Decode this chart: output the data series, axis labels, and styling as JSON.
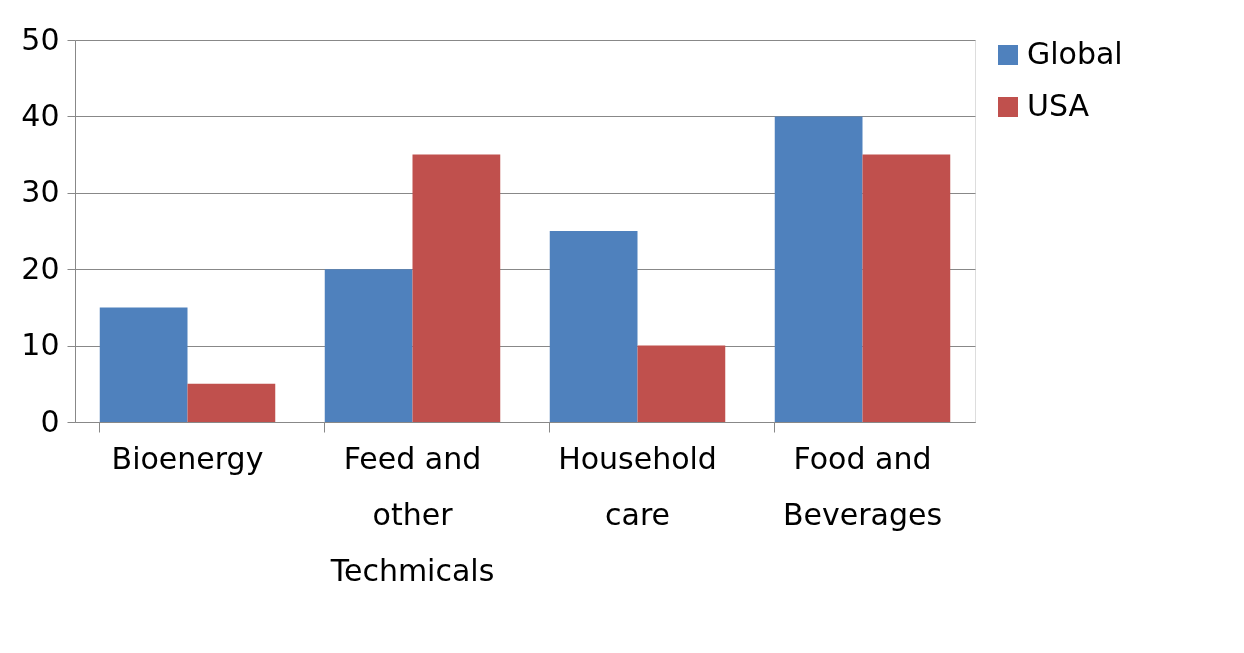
{
  "chart_data": {
    "type": "bar",
    "categories": [
      "Bioenergy",
      "Feed and other Techmicals",
      "Household care",
      "Food and Beverages"
    ],
    "series": [
      {
        "name": "Global",
        "color": "#4f81bd",
        "values": [
          15,
          20,
          25,
          40
        ]
      },
      {
        "name": "USA",
        "color": "#c0504d",
        "values": [
          5,
          35,
          10,
          35
        ]
      }
    ],
    "ylim": [
      0,
      50
    ],
    "yticks": [
      0,
      10,
      20,
      30,
      40,
      50
    ],
    "grid": "y",
    "legend": "right"
  }
}
